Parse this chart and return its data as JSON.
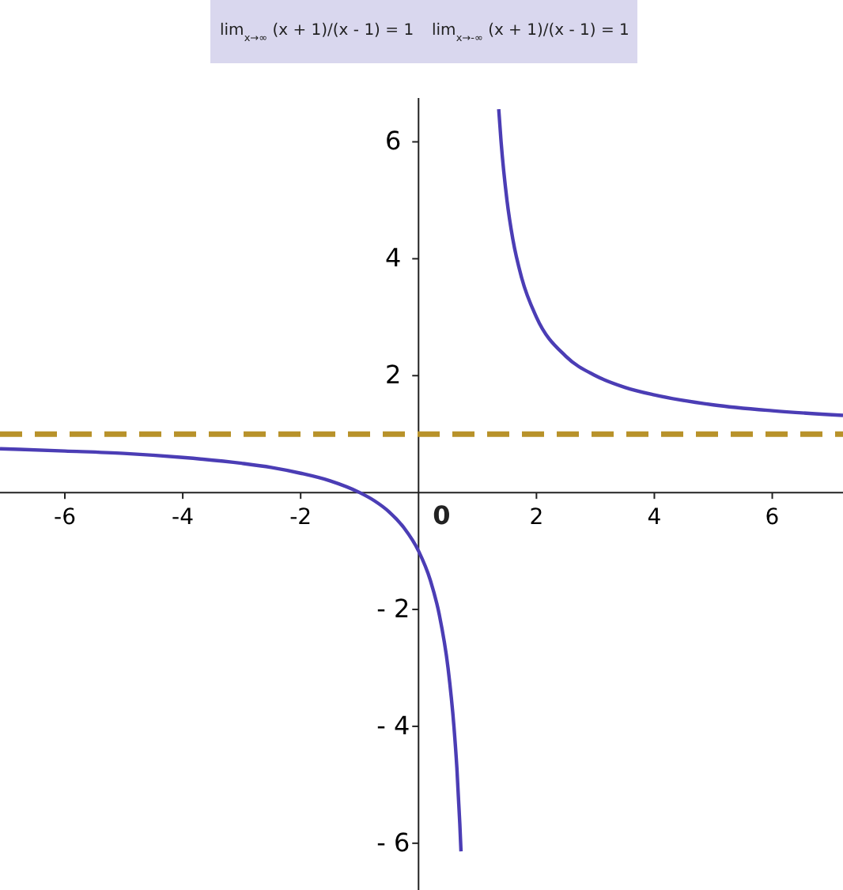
{
  "chart_data": {
    "type": "line",
    "annotations": [
      "lim$_{x→∞}$ (x + 1)/(x - 1) = 1",
      "lim$_{x→-∞}$ (x + 1)/(x - 1) = 1",
      "0"
    ],
    "series": [
      {
        "color": "#4b3db5",
        "x": [
          -7.1,
          -6,
          -5,
          -4,
          -3,
          -2.5,
          -2,
          -1.5,
          -1,
          -0.75,
          -0.5,
          -0.25,
          0,
          0.2,
          0.35,
          0.5,
          0.6,
          0.65,
          0.7,
          0.72
        ],
        "values": [
          0.75,
          0.71,
          0.67,
          0.6,
          0.5,
          0.43,
          0.33,
          0.2,
          0,
          -0.14,
          -0.33,
          -0.6,
          -1,
          -1.5,
          -2.08,
          -3,
          -4,
          -4.71,
          -5.67,
          -6.14
        ]
      },
      {
        "color": "#4b3db5",
        "x": [
          1.36,
          1.4,
          1.5,
          1.6,
          1.75,
          2,
          2.5,
          3,
          3.5,
          4,
          5,
          6,
          7.2
        ],
        "values": [
          6.56,
          6,
          5,
          4.33,
          3.67,
          3,
          2.33,
          2,
          1.8,
          1.67,
          1.5,
          1.4,
          1.32
        ]
      }
    ],
    "xlim": [
      -7.1,
      7.2
    ],
    "ylim": [
      -6.8,
      6.75
    ],
    "xticks": [
      -6,
      -4,
      -2,
      2,
      4,
      6
    ],
    "yticks": [
      {
        "value": -6,
        "label": "- 6"
      },
      {
        "value": -4,
        "label": "- 4"
      },
      {
        "value": -2,
        "label": "- 2"
      },
      2,
      4,
      6
    ],
    "ref_lines": [
      {
        "axis": "y",
        "value": 1,
        "color": "#b8922a",
        "line_style": "dashed"
      }
    ],
    "line_style": "solid",
    "grid": false
  }
}
